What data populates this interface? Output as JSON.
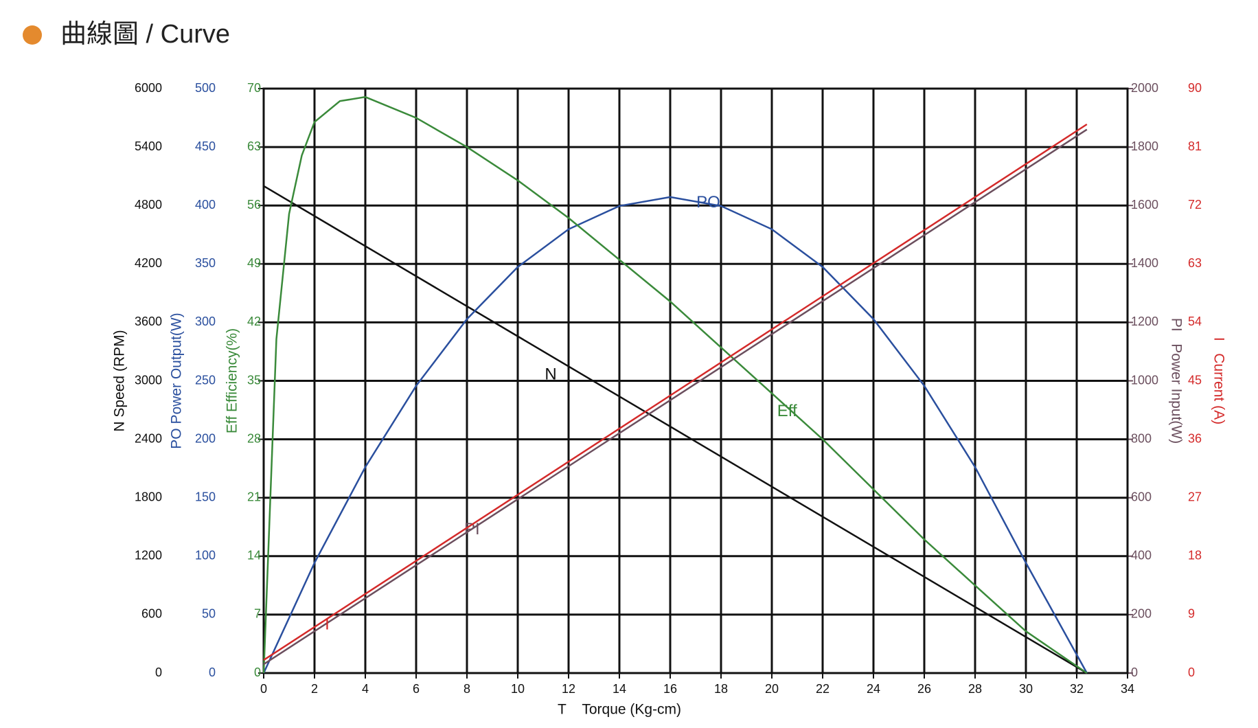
{
  "chart_data": {
    "type": "line",
    "title": "曲線圖 / Curve",
    "xlabel": "T    Torque (Kg-cm)",
    "xlim": [
      0,
      34
    ],
    "xticks": [
      0,
      2,
      4,
      6,
      8,
      10,
      12,
      14,
      16,
      18,
      20,
      22,
      24,
      26,
      28,
      30,
      32,
      34
    ],
    "grid": true,
    "y_axes": [
      {
        "id": "n",
        "title": "N Speed (RPM)",
        "side": "left",
        "color": "#111111",
        "lim": [
          0,
          6000
        ],
        "ticks": [
          0,
          600,
          1200,
          1800,
          2400,
          3000,
          3600,
          4200,
          4800,
          5400,
          6000
        ]
      },
      {
        "id": "po",
        "title": "PO Power Output(W)",
        "side": "left",
        "color": "#2a4f9e",
        "lim": [
          0,
          500
        ],
        "ticks": [
          0,
          50,
          100,
          150,
          200,
          250,
          300,
          350,
          400,
          450,
          500
        ]
      },
      {
        "id": "eff",
        "title": "Eff Efficiency(%)",
        "side": "left",
        "color": "#3a8a3a",
        "lim": [
          0,
          70
        ],
        "ticks": [
          0,
          7,
          14,
          21,
          28,
          35,
          42,
          49,
          56,
          63,
          70
        ]
      },
      {
        "id": "pi",
        "title": "PI   Power Input(W)",
        "side": "right",
        "color": "#6b4f5e",
        "lim": [
          0,
          2000
        ],
        "ticks": [
          0,
          200,
          400,
          600,
          800,
          1000,
          1200,
          1400,
          1600,
          1800,
          2000
        ]
      },
      {
        "id": "i",
        "title": "I   Current (A)",
        "side": "right",
        "color": "#d42a2a",
        "lim": [
          0,
          90
        ],
        "ticks": [
          0,
          9,
          18,
          27,
          36,
          45,
          54,
          63,
          72,
          81,
          90
        ]
      }
    ],
    "series": [
      {
        "name": "N",
        "axis": "n",
        "color": "#111111",
        "x": [
          0,
          32.4
        ],
        "values": [
          5000,
          0
        ]
      },
      {
        "name": "PO",
        "axis": "po",
        "color": "#2a4f9e",
        "x": [
          0,
          2,
          4,
          6,
          8,
          10,
          12,
          14,
          16,
          18,
          20,
          22,
          24,
          26,
          28,
          30,
          32.4
        ],
        "values": [
          0,
          94.3,
          176.2,
          245.7,
          302.8,
          347.4,
          379.7,
          399.6,
          407.2,
          399.6,
          379.7,
          347.4,
          302.8,
          245.7,
          176.2,
          94.3,
          0
        ]
      },
      {
        "name": "Eff",
        "axis": "eff",
        "color": "#3a8a3a",
        "x": [
          0,
          0.5,
          1,
          1.5,
          2,
          3,
          4,
          6,
          8,
          10,
          12,
          14,
          16,
          18,
          20,
          22,
          24,
          26,
          28,
          30,
          32.4
        ],
        "values": [
          0,
          40,
          55,
          62,
          66,
          68.5,
          69,
          66.5,
          63,
          59,
          54.5,
          49.5,
          44.5,
          39,
          33.5,
          28,
          22,
          16,
          10.5,
          5,
          0
        ]
      },
      {
        "name": "PI",
        "axis": "pi",
        "color": "#6b4f5e",
        "x": [
          0,
          32.4
        ],
        "values": [
          30,
          1860
        ]
      },
      {
        "name": "I",
        "axis": "i",
        "color": "#d42a2a",
        "x": [
          0,
          32.4
        ],
        "values": [
          2,
          84.5
        ]
      }
    ]
  }
}
